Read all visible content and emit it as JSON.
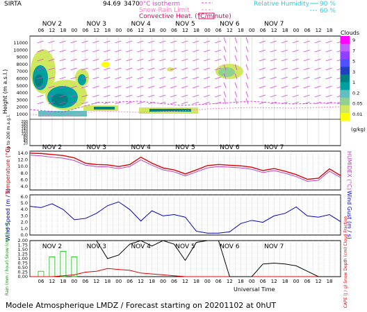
{
  "header": {
    "station": "SIRTA",
    "number": "94.69",
    "number_overlap": "3470",
    "legend_isotherm": "0°C isotherm",
    "legend_snowrain": "Snow-Rain Limit",
    "legend_convective": "Convective Heat. (°C/minute)",
    "rh_title": "Relative Humidity",
    "rh_90": "90 %",
    "rh_60": "60 %"
  },
  "axes": {
    "hour_ticks": [
      "06",
      "12",
      "18",
      "00",
      "06",
      "12",
      "18",
      "00",
      "06",
      "12",
      "18",
      "00",
      "06",
      "12",
      "18",
      "00",
      "06",
      "12",
      "18",
      "00",
      "06",
      "12",
      "18",
      "00",
      "06",
      "12",
      "18"
    ],
    "day_labels": [
      "NOV 2",
      "NOV 3",
      "NOV 4",
      "NOV 5",
      "NOV 6",
      "NOV 7"
    ],
    "height_ticks": [
      "11000",
      "10000",
      "9000",
      "8000",
      "7000",
      "6000",
      "5000",
      "4000",
      "3000",
      "2000",
      "1000",
      "200",
      "180",
      "160",
      "140",
      "120",
      "100",
      "80",
      "60",
      "40",
      "20"
    ],
    "height_label": "Height (m a.s.l.)",
    "low_label": "Up to 200 m a.g.l.",
    "time_label": "Universal Time"
  },
  "clouds": {
    "title": "Clouds",
    "unit": "(g/kg)",
    "levels": [
      "9",
      "7",
      "5",
      "3",
      "1",
      "0.2",
      "0.05",
      "0.01"
    ],
    "colors": [
      "#ff00ff",
      "#c060ff",
      "#9040ff",
      "#5050ff",
      "#2040c0",
      "#008080",
      "#00a0a0",
      "#60c0c0",
      "#90d090",
      "#d0e860",
      "#ffff00"
    ]
  },
  "temperature_panel": {
    "ylabel": "Temperature (°C)",
    "rlabel": "HUMIDEX (°C)",
    "yticks": [
      "14.0",
      "12.0",
      "10.0",
      "8.0",
      "6.0",
      "4.0"
    ]
  },
  "wind_panel": {
    "ylabel": "Wind Speed (m / s)",
    "rlabel": "Wind Gust (m / s)",
    "yticks": [
      "6.0",
      "5.0",
      "4.0",
      "3.0",
      "2.0",
      "1.0",
      "0.0"
    ]
  },
  "precip_panel": {
    "ylabel": "Rain (mm / hour) Snow (cm / hour)",
    "rlabel": "CAPE (J / g) Snow Depth (cm) Cloud Fraction",
    "yticks": [
      "2.00",
      "1.75",
      "1.50",
      "1.25",
      "1.00",
      "0.75",
      "0.50",
      "0.25",
      "0.00"
    ]
  },
  "footer": "Modele Atmospherique LMDZ / Forecast starting on 20201102 at 0hUT",
  "chart_data": [
    {
      "type": "line",
      "title": "",
      "ylabel": "Temperature (°C)",
      "ylim": [
        3,
        14.6
      ],
      "x_hours": [
        0,
        6,
        12,
        18,
        24,
        30,
        36,
        42,
        48,
        54,
        60,
        66,
        72,
        78,
        84,
        90,
        96,
        102,
        108,
        114,
        120,
        126,
        132,
        138,
        144,
        150,
        156,
        162,
        168
      ],
      "series": [
        {
          "name": "Temperature",
          "color": "#e00000",
          "values": [
            14.0,
            13.9,
            13.6,
            13.3,
            12.6,
            11.0,
            10.6,
            10.5,
            10.0,
            10.6,
            12.8,
            11.0,
            9.6,
            9.0,
            7.8,
            9.0,
            10.3,
            10.6,
            10.4,
            10.2,
            9.8,
            8.8,
            9.4,
            8.6,
            7.6,
            6.2,
            6.5,
            9.3,
            7.3
          ]
        },
        {
          "name": "Humidex",
          "color": "#c040c0",
          "values": [
            13.4,
            13.2,
            12.8,
            12.5,
            11.8,
            10.4,
            10.0,
            9.9,
            9.4,
            10.0,
            12.0,
            10.4,
            9.0,
            8.4,
            7.2,
            8.4,
            9.6,
            10.0,
            9.8,
            9.6,
            9.2,
            8.2,
            8.8,
            8.0,
            7.0,
            5.6,
            5.9,
            8.6,
            6.7
          ]
        }
      ]
    },
    {
      "type": "line",
      "title": "",
      "ylabel": "Wind Speed (m / s)",
      "ylim": [
        0,
        6.3
      ],
      "x_hours": [
        0,
        6,
        12,
        18,
        24,
        30,
        36,
        42,
        48,
        54,
        60,
        66,
        72,
        78,
        84,
        90,
        96,
        102,
        108,
        114,
        120,
        126,
        132,
        138,
        144,
        150,
        156,
        162,
        168
      ],
      "series": [
        {
          "name": "Wind Speed",
          "color": "#0000c0",
          "values": [
            4.5,
            4.3,
            4.9,
            4.0,
            2.4,
            2.6,
            3.4,
            4.6,
            5.2,
            4.0,
            2.2,
            3.8,
            3.0,
            3.2,
            2.8,
            0.6,
            0.3,
            0.3,
            0.5,
            1.8,
            2.3,
            2.0,
            3.0,
            3.4,
            4.4,
            3.0,
            2.8,
            3.2,
            2.1
          ]
        }
      ]
    },
    {
      "type": "line",
      "title": "",
      "ylabel": "Rain (mm / hour)",
      "ylim": [
        0,
        2.0
      ],
      "x_hours": [
        0,
        6,
        12,
        18,
        24,
        30,
        36,
        42,
        48,
        54,
        60,
        66,
        72,
        78,
        84,
        90,
        96,
        102,
        108,
        114,
        120,
        126,
        132,
        138,
        144,
        150,
        156,
        162,
        168
      ],
      "series": [
        {
          "name": "Rain",
          "color": "#00c000",
          "values": [
            0.0,
            0.3,
            1.1,
            1.4,
            1.1,
            0.0,
            0.0,
            0.0,
            0.0,
            0.0,
            0.0,
            0.0,
            0.0,
            0.0,
            0.0,
            0.0,
            0.0,
            0.0,
            0.0,
            0.0,
            0.0,
            0.0,
            0.0,
            0.0,
            0.0,
            0.0,
            0.0,
            0.0,
            0.0
          ]
        },
        {
          "name": "CAPE",
          "color": "#e00000",
          "values": [
            0.0,
            0.0,
            0.0,
            0.05,
            0.1,
            0.25,
            0.3,
            0.45,
            0.4,
            0.35,
            0.2,
            0.15,
            0.1,
            0.05,
            0.0,
            0.0,
            0.0,
            0.0,
            0.0,
            0.0,
            0.0,
            0.0,
            0.0,
            0.0,
            0.0,
            0.0,
            0.0,
            0.0,
            0.0
          ]
        },
        {
          "name": "Cloud Fraction",
          "color": "#000000",
          "values": [
            2.0,
            2.0,
            2.0,
            2.0,
            2.0,
            2.0,
            2.0,
            1.0,
            1.2,
            1.8,
            2.0,
            1.7,
            2.0,
            1.8,
            0.9,
            1.9,
            2.0,
            2.0,
            0.0,
            0.0,
            0.0,
            0.7,
            0.75,
            0.7,
            0.6,
            0.3,
            0.0,
            0.0,
            0.0
          ]
        }
      ]
    }
  ]
}
